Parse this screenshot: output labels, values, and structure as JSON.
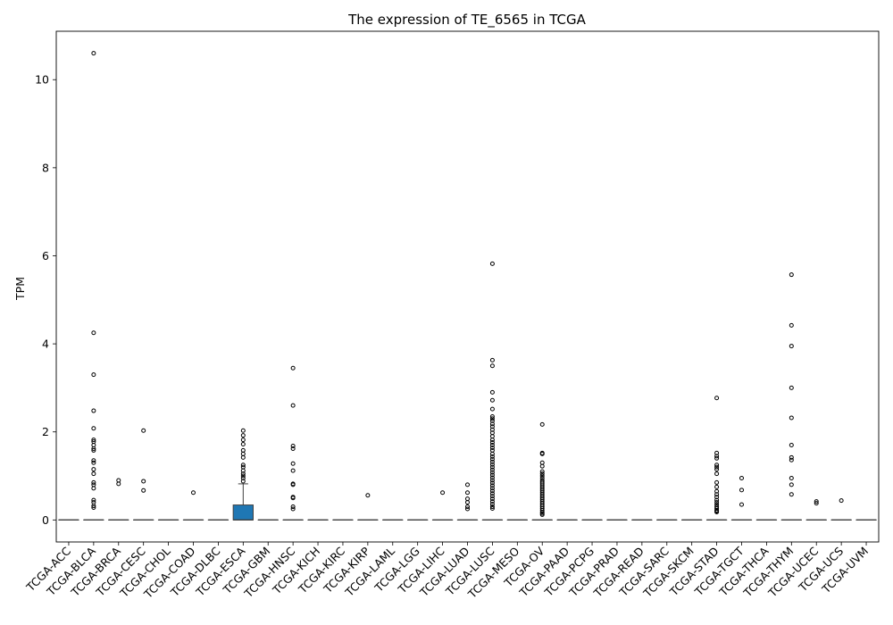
{
  "chart_data": {
    "type": "box",
    "title": "The expression of TE_6565 in TCGA",
    "xlabel": "",
    "ylabel": "TPM",
    "ylim": [
      -0.5,
      11.1
    ],
    "yticks": [
      0,
      2,
      4,
      6,
      8,
      10
    ],
    "box_color": "#1f77b4",
    "categories": [
      "TCGA-ACC",
      "TCGA-BLCA",
      "TCGA-BRCA",
      "TCGA-CESC",
      "TCGA-CHOL",
      "TCGA-COAD",
      "TCGA-DLBC",
      "TCGA-ESCA",
      "TCGA-GBM",
      "TCGA-HNSC",
      "TCGA-KICH",
      "TCGA-KIRC",
      "TCGA-KIRP",
      "TCGA-LAML",
      "TCGA-LGG",
      "TCGA-LIHC",
      "TCGA-LUAD",
      "TCGA-LUSC",
      "TCGA-MESO",
      "TCGA-OV",
      "TCGA-PAAD",
      "TCGA-PCPG",
      "TCGA-PRAD",
      "TCGA-READ",
      "TCGA-SARC",
      "TCGA-SKCM",
      "TCGA-STAD",
      "TCGA-TGCT",
      "TCGA-THCA",
      "TCGA-THYM",
      "TCGA-UCEC",
      "TCGA-UCS",
      "TCGA-UVM"
    ],
    "boxes": [
      {
        "median": 0,
        "q1": 0,
        "q3": 0,
        "whisker_low": 0,
        "whisker_high": 0,
        "outliers": []
      },
      {
        "median": 0,
        "q1": 0,
        "q3": 0,
        "whisker_low": 0,
        "whisker_high": 0,
        "outliers": [
          10.6,
          4.25,
          3.3,
          2.48,
          2.08,
          1.82,
          1.78,
          1.7,
          1.62,
          1.58,
          1.35,
          1.3,
          1.15,
          1.05,
          0.85,
          0.8,
          0.72,
          0.45,
          0.4,
          0.32,
          0.28
        ]
      },
      {
        "median": 0,
        "q1": 0,
        "q3": 0,
        "whisker_low": 0,
        "whisker_high": 0,
        "outliers": [
          0.9,
          0.82
        ]
      },
      {
        "median": 0,
        "q1": 0,
        "q3": 0,
        "whisker_low": 0,
        "whisker_high": 0,
        "outliers": [
          2.03,
          0.88,
          0.67
        ]
      },
      {
        "median": 0,
        "q1": 0,
        "q3": 0,
        "whisker_low": 0,
        "whisker_high": 0,
        "outliers": []
      },
      {
        "median": 0,
        "q1": 0,
        "q3": 0,
        "whisker_low": 0,
        "whisker_high": 0,
        "outliers": [
          0.62
        ]
      },
      {
        "median": 0,
        "q1": 0,
        "q3": 0,
        "whisker_low": 0,
        "whisker_high": 0,
        "outliers": []
      },
      {
        "median": 0,
        "q1": 0,
        "q3": 0.34,
        "whisker_low": 0,
        "whisker_high": 0.82,
        "outliers": [
          2.03,
          1.92,
          1.82,
          1.72,
          1.58,
          1.5,
          1.42,
          1.25,
          1.2,
          1.12,
          1.05,
          1.0,
          0.95,
          0.88
        ]
      },
      {
        "median": 0,
        "q1": 0,
        "q3": 0,
        "whisker_low": 0,
        "whisker_high": 0,
        "outliers": []
      },
      {
        "median": 0,
        "q1": 0,
        "q3": 0,
        "whisker_low": 0,
        "whisker_high": 0,
        "outliers": [
          3.45,
          2.6,
          1.68,
          1.62,
          1.28,
          1.12,
          0.82,
          0.8,
          0.52,
          0.5,
          0.3,
          0.25
        ]
      },
      {
        "median": 0,
        "q1": 0,
        "q3": 0,
        "whisker_low": 0,
        "whisker_high": 0,
        "outliers": []
      },
      {
        "median": 0,
        "q1": 0,
        "q3": 0,
        "whisker_low": 0,
        "whisker_high": 0,
        "outliers": []
      },
      {
        "median": 0,
        "q1": 0,
        "q3": 0,
        "whisker_low": 0,
        "whisker_high": 0,
        "outliers": [
          0.56
        ]
      },
      {
        "median": 0,
        "q1": 0,
        "q3": 0,
        "whisker_low": 0,
        "whisker_high": 0,
        "outliers": []
      },
      {
        "median": 0,
        "q1": 0,
        "q3": 0,
        "whisker_low": 0,
        "whisker_high": 0,
        "outliers": []
      },
      {
        "median": 0,
        "q1": 0,
        "q3": 0,
        "whisker_low": 0,
        "whisker_high": 0,
        "outliers": [
          0.62
        ]
      },
      {
        "median": 0,
        "q1": 0,
        "q3": 0,
        "whisker_low": 0,
        "whisker_high": 0,
        "outliers": [
          0.8,
          0.62,
          0.48,
          0.4,
          0.3,
          0.25
        ]
      },
      {
        "median": 0,
        "q1": 0,
        "q3": 0,
        "whisker_low": 0,
        "whisker_high": 0,
        "outliers": [
          5.82,
          3.63,
          3.5,
          2.9,
          2.72,
          2.52,
          2.35,
          2.3,
          2.25,
          2.18,
          2.12,
          2.05,
          1.98,
          1.9,
          1.82,
          1.76,
          1.7,
          1.64,
          1.58,
          1.5,
          1.44,
          1.38,
          1.32,
          1.26,
          1.2,
          1.14,
          1.08,
          1.02,
          0.96,
          0.9,
          0.84,
          0.78,
          0.72,
          0.66,
          0.6,
          0.54,
          0.48,
          0.42,
          0.36,
          0.3,
          0.26
        ]
      },
      {
        "median": 0,
        "q1": 0,
        "q3": 0,
        "whisker_low": 0,
        "whisker_high": 0,
        "outliers": []
      },
      {
        "median": 0,
        "q1": 0,
        "q3": 0,
        "whisker_low": 0,
        "whisker_high": 0,
        "outliers": [
          2.17,
          1.52,
          1.5,
          1.3,
          1.22,
          1.1,
          1.05,
          1.0,
          0.95,
          0.9,
          0.86,
          0.82,
          0.78,
          0.74,
          0.7,
          0.66,
          0.62,
          0.58,
          0.54,
          0.5,
          0.46,
          0.42,
          0.38,
          0.34,
          0.3,
          0.26,
          0.22,
          0.18,
          0.15,
          0.12
        ]
      },
      {
        "median": 0,
        "q1": 0,
        "q3": 0,
        "whisker_low": 0,
        "whisker_high": 0,
        "outliers": []
      },
      {
        "median": 0,
        "q1": 0,
        "q3": 0,
        "whisker_low": 0,
        "whisker_high": 0,
        "outliers": []
      },
      {
        "median": 0,
        "q1": 0,
        "q3": 0,
        "whisker_low": 0,
        "whisker_high": 0,
        "outliers": []
      },
      {
        "median": 0,
        "q1": 0,
        "q3": 0,
        "whisker_low": 0,
        "whisker_high": 0,
        "outliers": []
      },
      {
        "median": 0,
        "q1": 0,
        "q3": 0,
        "whisker_low": 0,
        "whisker_high": 0,
        "outliers": []
      },
      {
        "median": 0,
        "q1": 0,
        "q3": 0,
        "whisker_low": 0,
        "whisker_high": 0,
        "outliers": []
      },
      {
        "median": 0,
        "q1": 0,
        "q3": 0,
        "whisker_low": 0,
        "whisker_high": 0,
        "outliers": [
          2.77,
          1.52,
          1.45,
          1.4,
          1.25,
          1.2,
          1.15,
          1.05,
          0.85,
          0.75,
          0.65,
          0.58,
          0.52,
          0.45,
          0.4,
          0.35,
          0.3,
          0.26,
          0.22,
          0.2,
          0.18
        ]
      },
      {
        "median": 0,
        "q1": 0,
        "q3": 0,
        "whisker_low": 0,
        "whisker_high": 0,
        "outliers": [
          0.95,
          0.68,
          0.35
        ]
      },
      {
        "median": 0,
        "q1": 0,
        "q3": 0,
        "whisker_low": 0,
        "whisker_high": 0,
        "outliers": []
      },
      {
        "median": 0,
        "q1": 0,
        "q3": 0,
        "whisker_low": 0,
        "whisker_high": 0,
        "outliers": [
          5.57,
          4.42,
          3.95,
          3.0,
          2.32,
          1.7,
          1.42,
          1.36,
          0.95,
          0.8,
          0.58
        ]
      },
      {
        "median": 0,
        "q1": 0,
        "q3": 0,
        "whisker_low": 0,
        "whisker_high": 0,
        "outliers": [
          0.42,
          0.38
        ]
      },
      {
        "median": 0,
        "q1": 0,
        "q3": 0,
        "whisker_low": 0,
        "whisker_high": 0,
        "outliers": [
          0.44
        ]
      },
      {
        "median": 0,
        "q1": 0,
        "q3": 0,
        "whisker_low": 0,
        "whisker_high": 0,
        "outliers": []
      }
    ]
  }
}
